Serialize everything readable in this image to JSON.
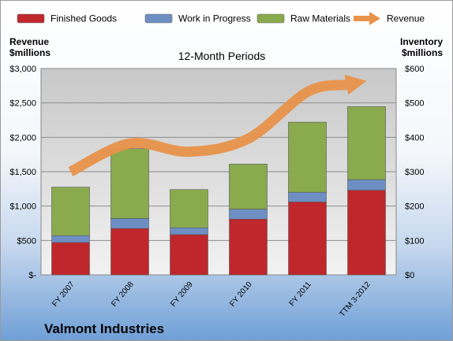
{
  "chart_data": {
    "type": "bar",
    "stacked": true,
    "title": "12-Month Periods",
    "company": "Valmont Industries",
    "left_axis_title": [
      "Revenue",
      "$millions"
    ],
    "right_axis_title": [
      "Inventory",
      "$millions"
    ],
    "categories": [
      "FY 2007",
      "FY 2008",
      "FY 2009",
      "FY 2010",
      "FY 2011",
      "TTM 3-2012"
    ],
    "left_axis": {
      "ylim": [
        0,
        3000
      ],
      "ticks": [
        0,
        500,
        1000,
        1500,
        2000,
        2500,
        3000
      ],
      "tick_labels": [
        "$-",
        "$500",
        "$1,000",
        "$1,500",
        "$2,000",
        "$2,500",
        "$3,000"
      ]
    },
    "right_axis": {
      "ylim": [
        0,
        600
      ],
      "ticks": [
        0,
        100,
        200,
        300,
        400,
        500,
        600
      ],
      "tick_labels": [
        "$0",
        "$100",
        "$200",
        "$300",
        "$400",
        "$500",
        "$600"
      ]
    },
    "series": [
      {
        "name": "Finished Goods",
        "axis": "right",
        "kind": "bar",
        "color": "#c0272d",
        "values": [
          94,
          135,
          117,
          162,
          212,
          246
        ]
      },
      {
        "name": "Work in Progress",
        "axis": "right",
        "kind": "bar",
        "color": "#6e8fc4",
        "values": [
          20,
          29,
          20,
          29,
          28,
          31
        ]
      },
      {
        "name": "Raw Materials",
        "axis": "right",
        "kind": "bar",
        "color": "#8aaa4e",
        "values": [
          141,
          203,
          111,
          131,
          204,
          212
        ]
      },
      {
        "name": "Revenue",
        "axis": "left",
        "kind": "line",
        "color": "#e8924a",
        "values": [
          1500,
          1910,
          1790,
          1980,
          2660,
          2820
        ]
      }
    ],
    "legend_position": "top",
    "grid": true
  }
}
